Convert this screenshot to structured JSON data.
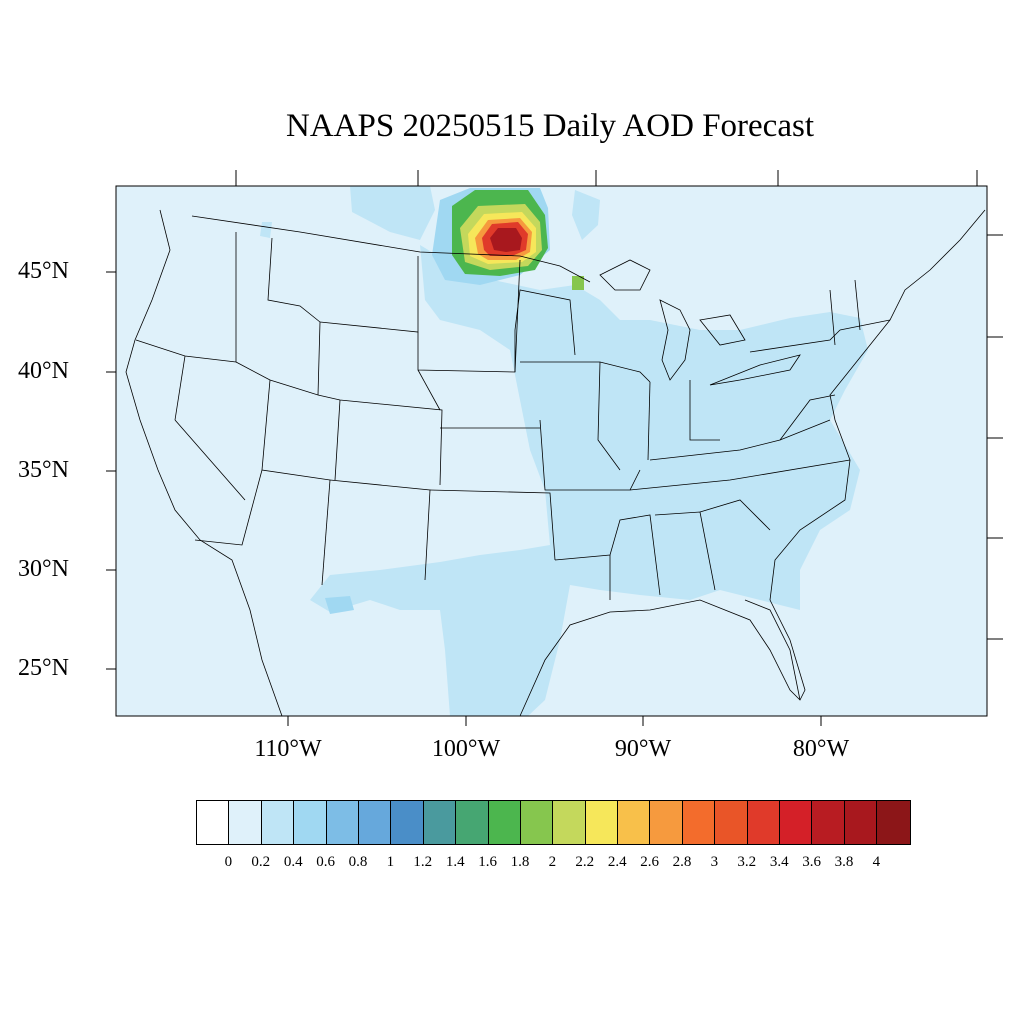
{
  "title": "NAAPS 20250515 Daily AOD Forecast",
  "map": {
    "background_color": "#dff1fa",
    "boundary_color": "#000000",
    "lat_labels": [
      "45°N",
      "40°N",
      "35°N",
      "30°N",
      "25°N"
    ],
    "lon_labels": [
      "110°W",
      "100°W",
      "90°W",
      "80°W"
    ]
  },
  "colorbar": {
    "tick_labels": [
      "0",
      "0.2",
      "0.4",
      "0.6",
      "0.8",
      "1",
      "1.2",
      "1.4",
      "1.6",
      "1.8",
      "2",
      "2.2",
      "2.4",
      "2.6",
      "2.8",
      "3",
      "3.2",
      "3.4",
      "3.6",
      "3.8",
      "4"
    ],
    "colors": [
      "#ffffff",
      "#dff1fa",
      "#bfe5f6",
      "#a0d8f2",
      "#7dbde6",
      "#66a8dc",
      "#4a8ec8",
      "#4a9a9e",
      "#46a672",
      "#4cb64e",
      "#86c64e",
      "#c4d85c",
      "#f6e75a",
      "#f8c04a",
      "#f69a3e",
      "#f36c2c",
      "#e95528",
      "#e03a2a",
      "#d42028",
      "#b81c22",
      "#a8181e",
      "#8c1618"
    ]
  }
}
